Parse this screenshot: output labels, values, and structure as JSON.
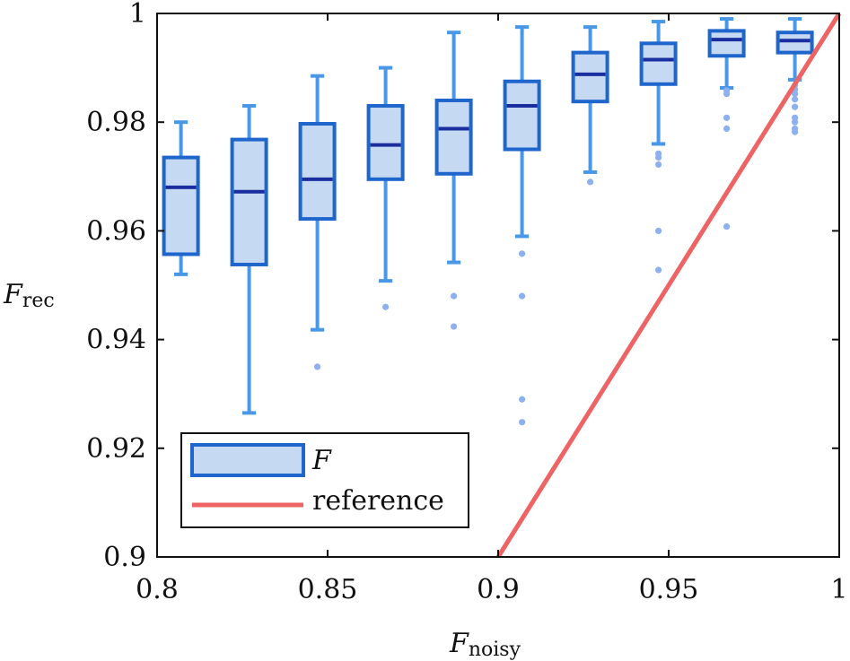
{
  "chart_data": {
    "type": "box",
    "xlabel": {
      "main": "F",
      "sub": "noisy"
    },
    "ylabel": {
      "main": "F",
      "sub": "rec"
    },
    "xlim": [
      0.8,
      1.0
    ],
    "ylim": [
      0.9,
      1.0
    ],
    "xticks": [
      {
        "value": 0.8,
        "label": "0.8"
      },
      {
        "value": 0.85,
        "label": "0.85"
      },
      {
        "value": 0.9,
        "label": "0.9"
      },
      {
        "value": 0.95,
        "label": "0.95"
      },
      {
        "value": 1.0,
        "label": "1"
      }
    ],
    "yticks": [
      {
        "value": 0.9,
        "label": "0.9"
      },
      {
        "value": 0.92,
        "label": "0.92"
      },
      {
        "value": 0.94,
        "label": "0.94"
      },
      {
        "value": 0.96,
        "label": "0.96"
      },
      {
        "value": 0.98,
        "label": "0.98"
      },
      {
        "value": 1.0,
        "label": "1"
      }
    ],
    "box_halfwidth": 0.005,
    "cap_halfwidth": 0.002,
    "series": [
      {
        "name": "F",
        "boxes": [
          {
            "x": 0.807,
            "whisker_low": 0.952,
            "q1": 0.9557,
            "median": 0.968,
            "q3": 0.9735,
            "whisker_high": 0.98,
            "outliers": []
          },
          {
            "x": 0.827,
            "whisker_low": 0.9265,
            "q1": 0.9538,
            "median": 0.9672,
            "q3": 0.9768,
            "whisker_high": 0.983,
            "outliers": []
          },
          {
            "x": 0.847,
            "whisker_low": 0.9418,
            "q1": 0.9622,
            "median": 0.9695,
            "q3": 0.9797,
            "whisker_high": 0.9885,
            "outliers": [
              0.935
            ]
          },
          {
            "x": 0.867,
            "whisker_low": 0.9508,
            "q1": 0.9695,
            "median": 0.9758,
            "q3": 0.983,
            "whisker_high": 0.99,
            "outliers": [
              0.946
            ]
          },
          {
            "x": 0.887,
            "whisker_low": 0.9542,
            "q1": 0.9705,
            "median": 0.9788,
            "q3": 0.984,
            "whisker_high": 0.9965,
            "outliers": [
              0.948,
              0.9424
            ]
          },
          {
            "x": 0.907,
            "whisker_low": 0.959,
            "q1": 0.975,
            "median": 0.983,
            "q3": 0.9875,
            "whisker_high": 0.9975,
            "outliers": [
              0.9558,
              0.948,
              0.929,
              0.9248
            ]
          },
          {
            "x": 0.927,
            "whisker_low": 0.9708,
            "q1": 0.9838,
            "median": 0.9888,
            "q3": 0.9928,
            "whisker_high": 0.9975,
            "outliers": [
              0.969
            ]
          },
          {
            "x": 0.947,
            "whisker_low": 0.976,
            "q1": 0.987,
            "median": 0.9915,
            "q3": 0.9945,
            "whisker_high": 0.9985,
            "outliers": [
              0.9742,
              0.9735,
              0.9722,
              0.96,
              0.9528
            ]
          },
          {
            "x": 0.967,
            "whisker_low": 0.9863,
            "q1": 0.9922,
            "median": 0.9952,
            "q3": 0.9968,
            "whisker_high": 0.999,
            "outliers": [
              0.9858,
              0.9852,
              0.9808,
              0.9788,
              0.9608
            ]
          },
          {
            "x": 0.987,
            "whisker_low": 0.9878,
            "q1": 0.9928,
            "median": 0.995,
            "q3": 0.9965,
            "whisker_high": 0.999,
            "outliers": [
              0.9868,
              0.986,
              0.9852,
              0.9842,
              0.9828,
              0.9808,
              0.98,
              0.9788,
              0.9782
            ]
          }
        ]
      },
      {
        "name": "reference",
        "type": "line",
        "x": [
          0.9,
          1.0
        ],
        "y": [
          0.9,
          1.0
        ]
      }
    ],
    "legend": {
      "placement": "bottom-left",
      "entries": [
        {
          "label": "F",
          "kind": "box"
        },
        {
          "label": "reference",
          "kind": "line"
        }
      ]
    },
    "colors": {
      "box_fill": "#c6d9f2",
      "box_edge": "#1f66cc",
      "median": "#1a2ea0",
      "whisker": "#4a97e6",
      "outlier": "#8fb0ef",
      "reference": "#ee6363",
      "axis": "#111111"
    }
  }
}
